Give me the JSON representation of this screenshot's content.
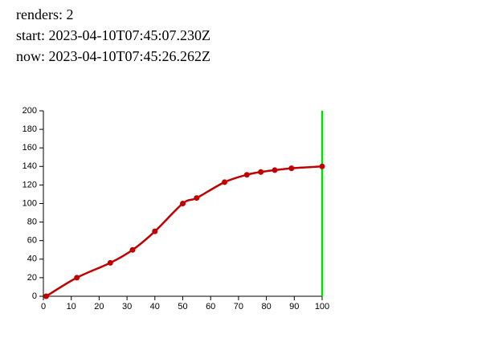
{
  "header": {
    "renders": "renders: 2",
    "start": "start: 2023-04-10T07:45:07.230Z",
    "now": "now: 2023-04-10T07:45:26.262Z"
  },
  "chart_data": {
    "type": "line",
    "x": [
      1,
      12,
      24,
      32,
      40,
      50,
      55,
      65,
      73,
      78,
      83,
      89,
      100
    ],
    "values": [
      0,
      20,
      36,
      50,
      70,
      100,
      106,
      123,
      131,
      134,
      136,
      138,
      140
    ],
    "color": "#c00000",
    "xlim": [
      0,
      100
    ],
    "xticks": [
      0,
      10,
      20,
      30,
      40,
      50,
      60,
      70,
      80,
      90,
      100
    ],
    "ylim": [
      0,
      200
    ],
    "yticks": [
      0,
      20,
      40,
      60,
      80,
      100,
      120,
      140,
      160,
      180,
      200
    ],
    "marker_x": 100,
    "marker_color": "#00e000"
  }
}
